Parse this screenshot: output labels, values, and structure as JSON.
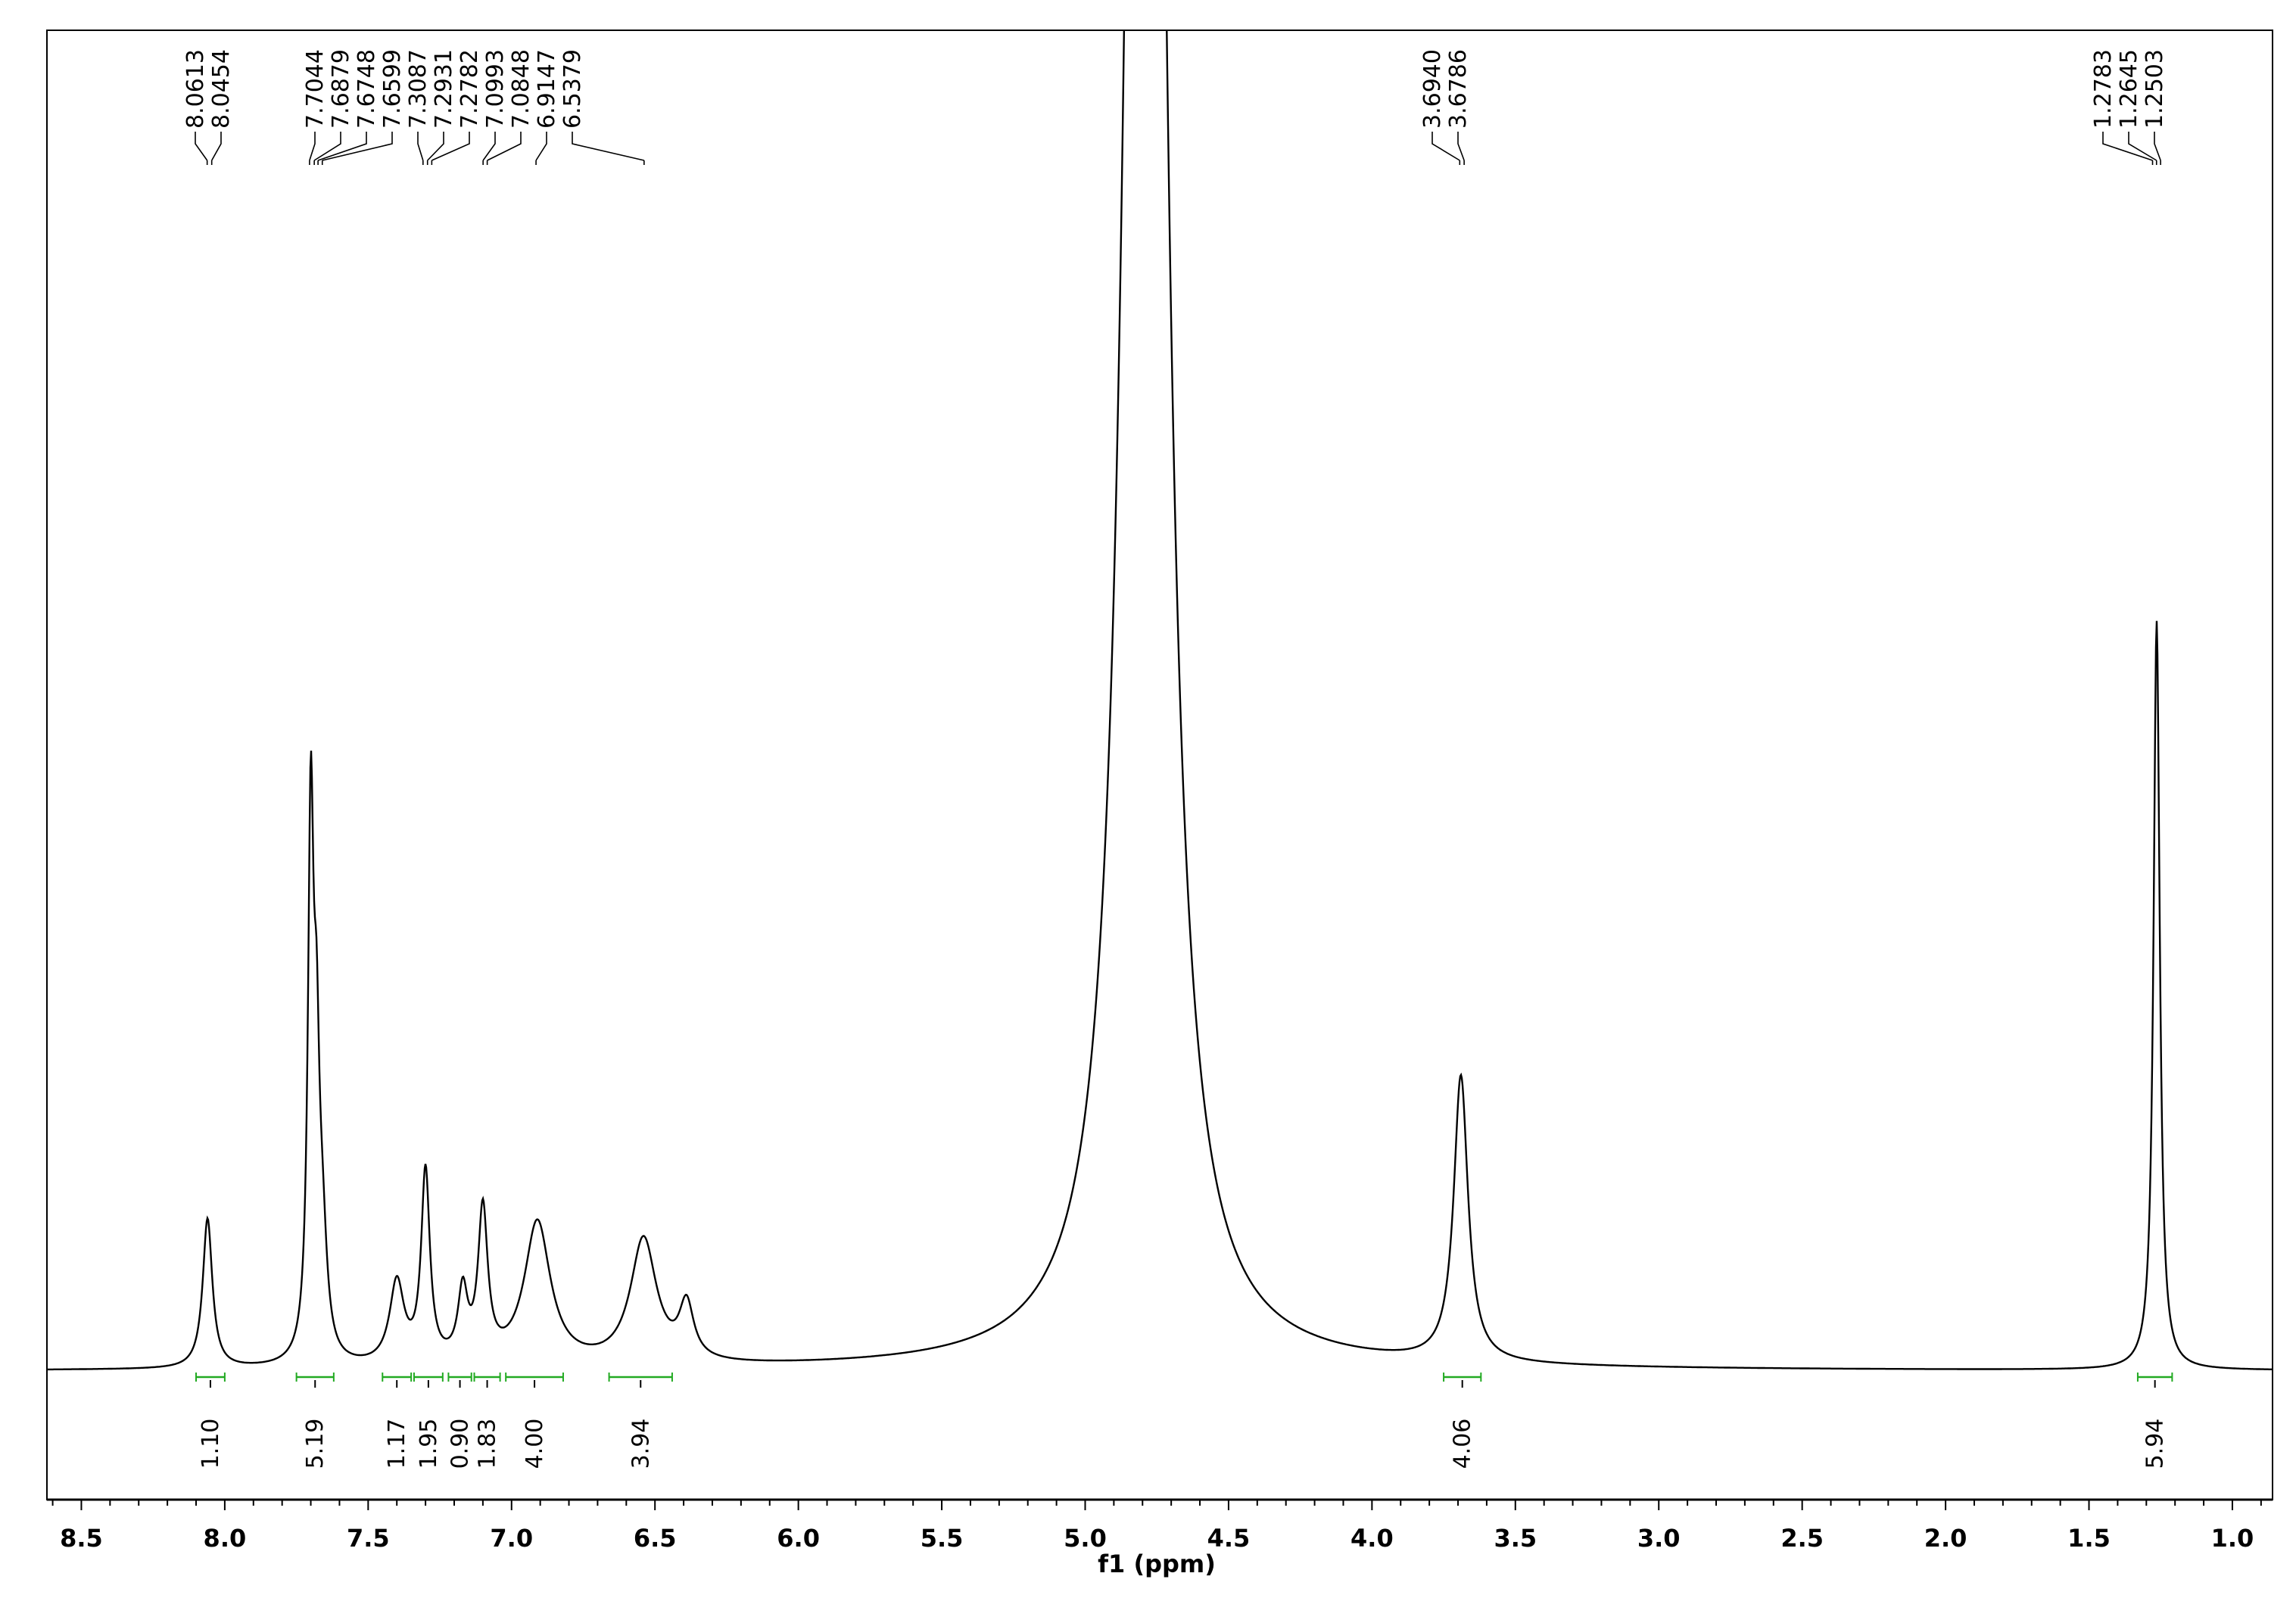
{
  "chart_data": {
    "type": "line",
    "title": "",
    "xlabel": "f1 (ppm)",
    "ylabel": "",
    "x_reversed": true,
    "xlim": [
      8.62,
      0.86
    ],
    "x_ticks": [
      "8.5",
      "8.0",
      "7.5",
      "7.0",
      "6.5",
      "6.0",
      "5.5",
      "5.0",
      "4.5",
      "4.0",
      "3.5",
      "3.0",
      "2.5",
      "2.0",
      "1.5",
      "1.0"
    ],
    "x_tick_values": [
      8.5,
      8.0,
      7.5,
      7.0,
      6.5,
      6.0,
      5.5,
      5.0,
      4.5,
      4.0,
      3.5,
      3.0,
      2.5,
      2.0,
      1.5,
      1.0
    ],
    "y_units": "relative intensity",
    "grid": false,
    "legend": "none",
    "peaks": [
      {
        "shift": 8.06,
        "height": 0.11,
        "width": 0.02
      },
      {
        "shift": 7.7,
        "height": 0.39,
        "width": 0.012
      },
      {
        "shift": 7.68,
        "height": 0.17,
        "width": 0.012
      },
      {
        "shift": 7.66,
        "height": 0.08,
        "width": 0.02
      },
      {
        "shift": 7.4,
        "height": 0.06,
        "width": 0.03
      },
      {
        "shift": 7.3,
        "height": 0.14,
        "width": 0.018
      },
      {
        "shift": 7.17,
        "height": 0.05,
        "width": 0.02
      },
      {
        "shift": 7.1,
        "height": 0.11,
        "width": 0.02
      },
      {
        "shift": 6.91,
        "height": 0.105,
        "width": 0.055
      },
      {
        "shift": 6.54,
        "height": 0.092,
        "width": 0.055
      },
      {
        "shift": 6.39,
        "height": 0.04,
        "width": 0.03
      },
      {
        "shift": 4.79,
        "height": 2.5,
        "width": 0.06
      },
      {
        "shift": 3.69,
        "height": 0.21,
        "width": 0.03
      },
      {
        "shift": 1.264,
        "height": 0.55,
        "width": 0.013
      }
    ],
    "peak_labels": [
      "8.0613",
      "8.0454",
      "7.7044",
      "7.6879",
      "7.6748",
      "7.6599",
      "7.3087",
      "7.2931",
      "7.2782",
      "7.0993",
      "7.0848",
      "6.9147",
      "6.5379",
      "3.6940",
      "3.6786",
      "1.2783",
      "1.2645",
      "1.2503"
    ],
    "integrals": [
      {
        "value": "1.10",
        "from": 8.1,
        "to": 8.0
      },
      {
        "value": "5.19",
        "from": 7.75,
        "to": 7.62
      },
      {
        "value": "1.17",
        "from": 7.45,
        "to": 7.35
      },
      {
        "value": "1.95",
        "from": 7.34,
        "to": 7.24
      },
      {
        "value": "0.90",
        "from": 7.22,
        "to": 7.14
      },
      {
        "value": "1.83",
        "from": 7.13,
        "to": 7.04
      },
      {
        "value": "4.00",
        "from": 7.02,
        "to": 6.82
      },
      {
        "value": "3.94",
        "from": 6.66,
        "to": 6.44
      },
      {
        "value": "4.06",
        "from": 3.75,
        "to": 3.62
      },
      {
        "value": "5.94",
        "from": 1.33,
        "to": 1.21
      }
    ]
  }
}
